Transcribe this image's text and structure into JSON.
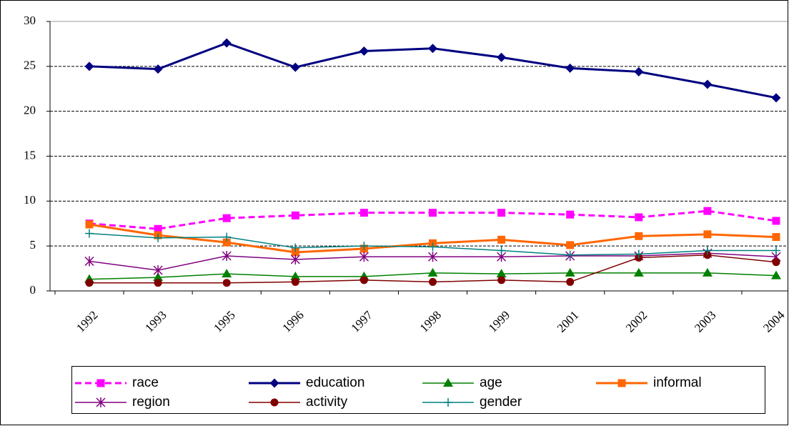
{
  "chart_data": {
    "type": "line",
    "categories": [
      "1992",
      "1993",
      "1995",
      "1996",
      "1997",
      "1998",
      "1999",
      "2001",
      "2002",
      "2003",
      "2004"
    ],
    "ylim": [
      0,
      30
    ],
    "yticks": [
      0,
      5,
      10,
      15,
      20,
      25,
      30
    ],
    "grid": true,
    "series": [
      {
        "name": "race",
        "color": "#ff00ff",
        "marker": "square",
        "dashed": true,
        "values": [
          7.5,
          6.9,
          8.1,
          8.4,
          8.7,
          8.7,
          8.7,
          8.5,
          8.2,
          8.9,
          7.8
        ]
      },
      {
        "name": "education",
        "color": "#000080",
        "marker": "diamond",
        "values": [
          25.0,
          24.7,
          27.6,
          24.9,
          26.7,
          27.0,
          26.0,
          24.8,
          24.4,
          23.0,
          21.5
        ]
      },
      {
        "name": "age",
        "color": "#008000",
        "marker": "triangle",
        "values": [
          1.3,
          1.5,
          1.9,
          1.6,
          1.6,
          2.0,
          1.9,
          2.0,
          2.0,
          2.0,
          1.7
        ]
      },
      {
        "name": "informal",
        "color": "#ff6600",
        "marker": "square",
        "values": [
          7.4,
          6.2,
          5.4,
          4.3,
          4.7,
          5.3,
          5.7,
          5.1,
          6.1,
          6.3,
          6.0
        ]
      },
      {
        "name": "region",
        "color": "#800080",
        "marker": "star",
        "values": [
          3.3,
          2.3,
          3.9,
          3.5,
          3.8,
          3.8,
          3.8,
          3.9,
          3.9,
          4.2,
          3.8
        ]
      },
      {
        "name": "activity",
        "color": "#800000",
        "marker": "circle",
        "values": [
          0.9,
          0.9,
          0.9,
          1.0,
          1.2,
          1.0,
          1.2,
          1.0,
          3.7,
          4.0,
          3.2
        ]
      },
      {
        "name": "gender",
        "color": "#008080",
        "marker": "plus",
        "values": [
          6.4,
          5.9,
          6.0,
          4.8,
          5.0,
          4.9,
          4.5,
          4.0,
          4.1,
          4.5,
          4.5
        ]
      }
    ]
  }
}
